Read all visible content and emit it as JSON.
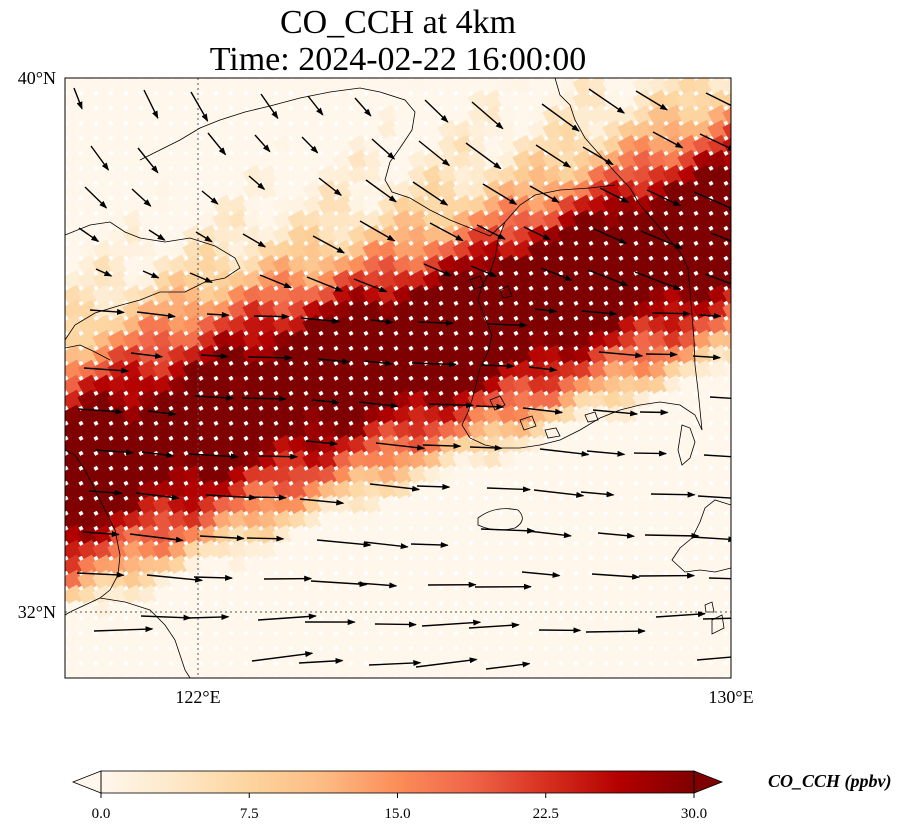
{
  "title": {
    "line1": "CO_CCH at 4km",
    "line2": "Time: 2024-02-22 16:00:00"
  },
  "map": {
    "lon_range": [
      119,
      130
    ],
    "lat_range": [
      31,
      40
    ],
    "lat_ticks": [
      {
        "value": 40,
        "label": "40°N"
      },
      {
        "value": 32,
        "label": "32°N"
      }
    ],
    "lon_ticks": [
      {
        "value": 122,
        "label": "122°E"
      },
      {
        "value": 130,
        "label": "130°E"
      }
    ],
    "gridlines": {
      "lon": [
        122
      ],
      "lat": [
        32
      ]
    },
    "field_name": "CO_CCH",
    "vector_field": "wind arrows",
    "colormap": "OrRd"
  },
  "colorbar": {
    "label": "CO_CCH (ppbv)",
    "min": 0.0,
    "max": 30.0,
    "ticks": [
      "0.0",
      "7.5",
      "15.0",
      "22.5",
      "30.0"
    ],
    "extend": "both",
    "colors": [
      "#fff7ec",
      "#fee8c8",
      "#fdd49e",
      "#fdbb84",
      "#fc8d59",
      "#ef6548",
      "#d7301f",
      "#b30000",
      "#7f0000"
    ]
  }
}
